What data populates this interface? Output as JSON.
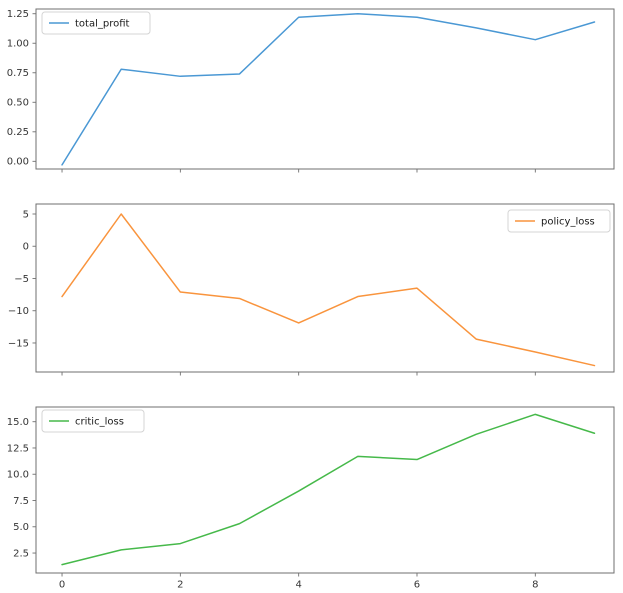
{
  "figure": {
    "background": "#ffffff",
    "spine_color": "#6f6f6f",
    "tick_color": "#6f6f6f",
    "tick_label_color": "#363636",
    "legend_bg": "#ffffff",
    "legend_border_color": "#d4d4d4",
    "legend_text_color": "#1a1a1a"
  },
  "chart_data": [
    {
      "type": "line",
      "title": "",
      "x": [
        0,
        1,
        2,
        3,
        4,
        5,
        6,
        7,
        8,
        9
      ],
      "series": [
        {
          "name": "total_profit",
          "color": "#4a98d4",
          "values": [
            -0.03,
            0.78,
            0.72,
            0.74,
            1.22,
            1.25,
            1.22,
            1.13,
            1.03,
            1.18
          ]
        }
      ],
      "xlim": [
        -0.44,
        9.33
      ],
      "ylim": [
        -0.065,
        1.29
      ],
      "grid": false,
      "legend_position": "upper-left",
      "show_xtick_labels": false,
      "yticks": [
        {
          "value": 0.0,
          "label": "0.00"
        },
        {
          "value": 0.25,
          "label": "0.25"
        },
        {
          "value": 0.5,
          "label": "0.50"
        },
        {
          "value": 0.75,
          "label": "0.75"
        },
        {
          "value": 1.0,
          "label": "1.00"
        },
        {
          "value": 1.25,
          "label": "1.25"
        }
      ],
      "xticks": [
        {
          "value": 0,
          "label": "0"
        },
        {
          "value": 2,
          "label": "2"
        },
        {
          "value": 4,
          "label": "4"
        },
        {
          "value": 6,
          "label": "6"
        },
        {
          "value": 8,
          "label": "8"
        }
      ]
    },
    {
      "type": "line",
      "title": "",
      "x": [
        0,
        1,
        2,
        3,
        4,
        5,
        6,
        7,
        8,
        9
      ],
      "series": [
        {
          "name": "policy_loss",
          "color": "#f9943d",
          "values": [
            -7.8,
            5.0,
            -7.1,
            -8.1,
            -11.9,
            -7.8,
            -6.5,
            -14.4,
            -16.4,
            -18.5
          ]
        }
      ],
      "xlim": [
        -0.44,
        9.33
      ],
      "ylim": [
        -19.5,
        6.55
      ],
      "grid": false,
      "legend_position": "upper-right",
      "show_xtick_labels": false,
      "yticks": [
        {
          "value": 5,
          "label": "5"
        },
        {
          "value": 0,
          "label": "0"
        },
        {
          "value": -5,
          "label": "−5"
        },
        {
          "value": -10,
          "label": "−10"
        },
        {
          "value": -15,
          "label": "−15"
        }
      ],
      "xticks": [
        {
          "value": 0,
          "label": "0"
        },
        {
          "value": 2,
          "label": "2"
        },
        {
          "value": 4,
          "label": "4"
        },
        {
          "value": 6,
          "label": "6"
        },
        {
          "value": 8,
          "label": "8"
        }
      ]
    },
    {
      "type": "line",
      "title": "",
      "x": [
        0,
        1,
        2,
        3,
        4,
        5,
        6,
        7,
        8,
        9
      ],
      "series": [
        {
          "name": "critic_loss",
          "color": "#46b94a",
          "values": [
            1.4,
            2.8,
            3.4,
            5.3,
            8.4,
            11.7,
            11.4,
            13.8,
            15.7,
            13.9
          ]
        }
      ],
      "xlim": [
        -0.44,
        9.33
      ],
      "ylim": [
        0.6,
        16.4
      ],
      "grid": false,
      "legend_position": "upper-left",
      "show_xtick_labels": true,
      "yticks": [
        {
          "value": 2.5,
          "label": "2.5"
        },
        {
          "value": 5.0,
          "label": "5.0"
        },
        {
          "value": 7.5,
          "label": "7.5"
        },
        {
          "value": 10.0,
          "label": "10.0"
        },
        {
          "value": 12.5,
          "label": "12.5"
        },
        {
          "value": 15.0,
          "label": "15.0"
        }
      ],
      "xticks": [
        {
          "value": 0,
          "label": "0"
        },
        {
          "value": 2,
          "label": "2"
        },
        {
          "value": 4,
          "label": "4"
        },
        {
          "value": 6,
          "label": "6"
        },
        {
          "value": 8,
          "label": "8"
        }
      ]
    }
  ]
}
